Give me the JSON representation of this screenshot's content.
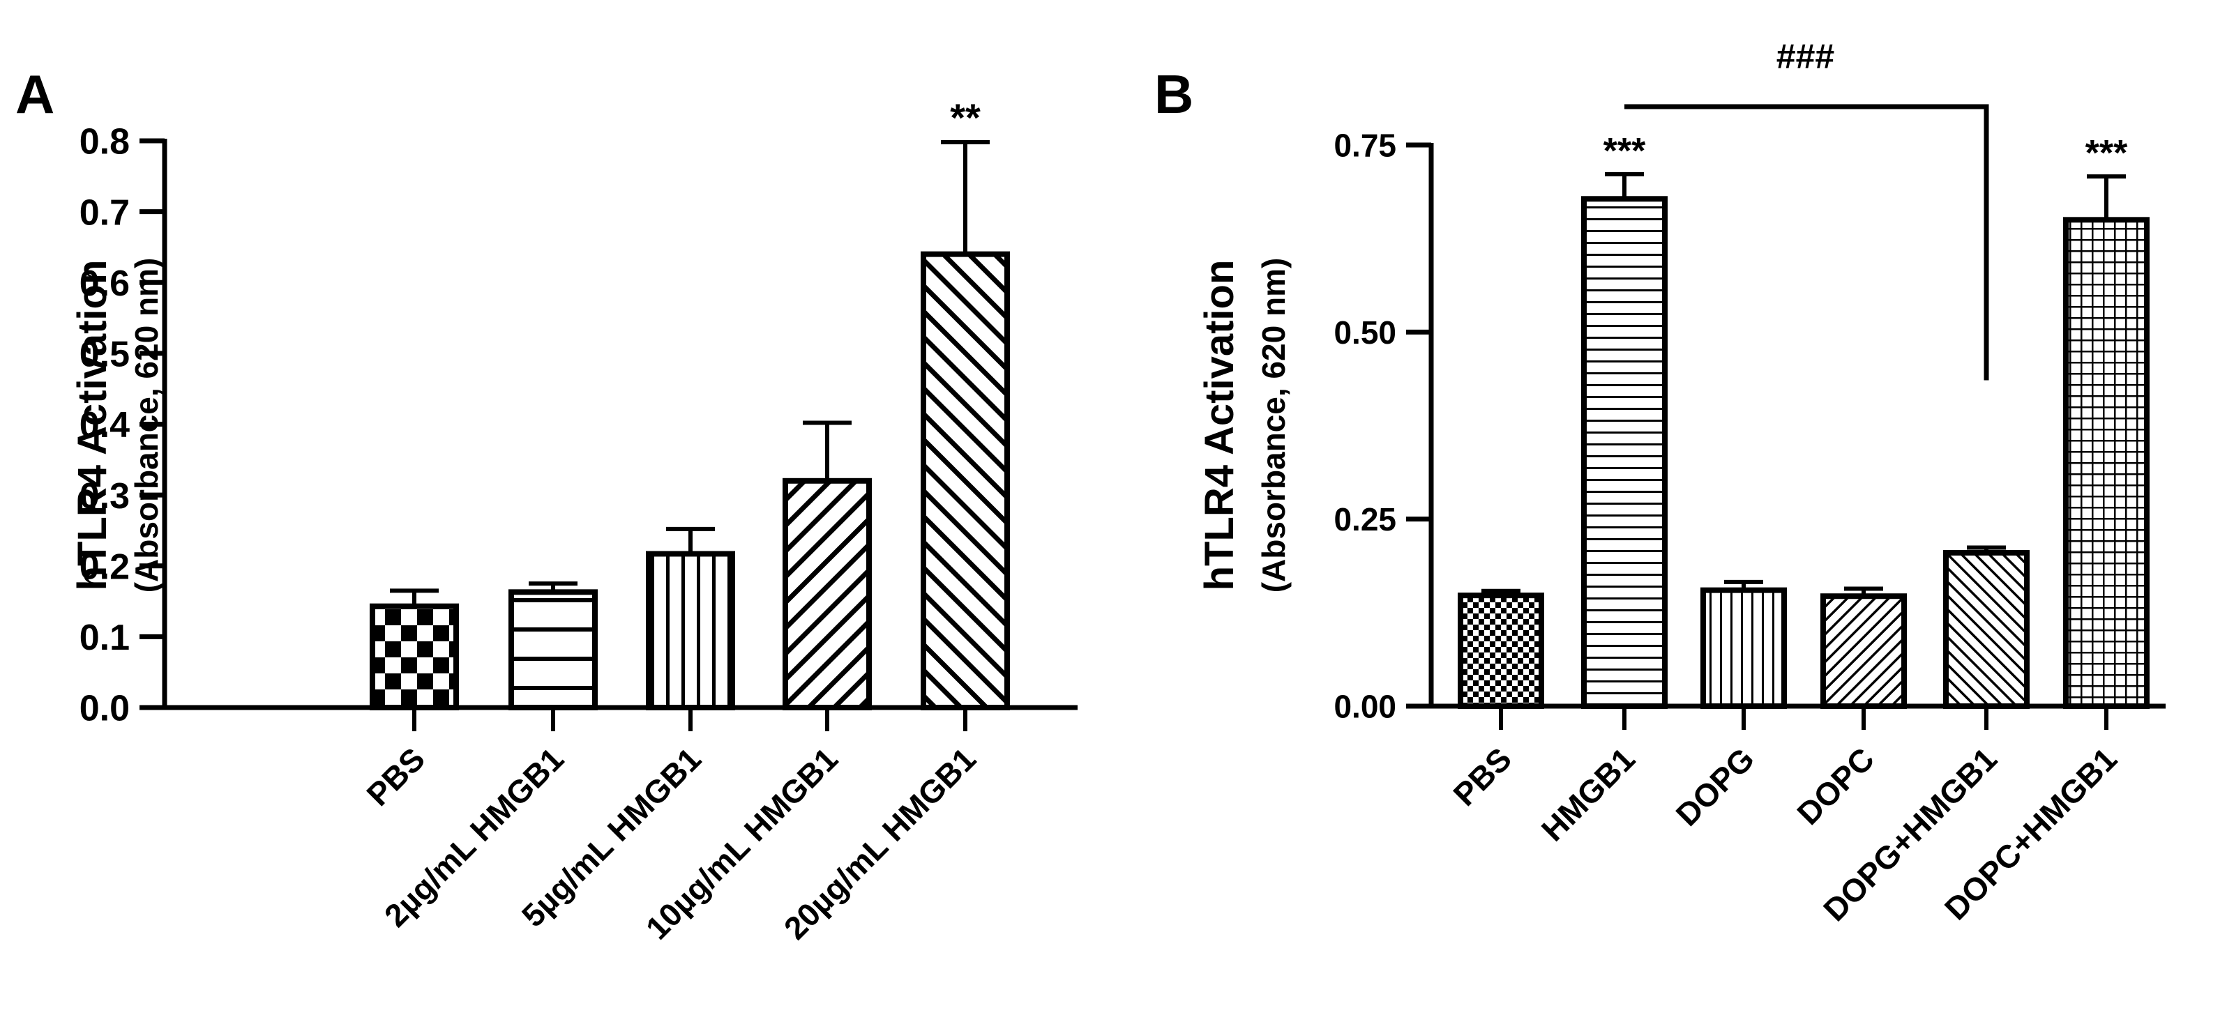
{
  "chart_data": [
    {
      "panel_label": "A",
      "type": "bar",
      "ylabel": "hTLR4 Activation",
      "ylabel_sub": "(Absorbance, 620 nm)",
      "ylim": [
        0,
        0.8
      ],
      "yticks": [
        {
          "value": 0.0,
          "label": "0.0"
        },
        {
          "value": 0.1,
          "label": "0.1"
        },
        {
          "value": 0.2,
          "label": "0.2"
        },
        {
          "value": 0.3,
          "label": "0.3"
        },
        {
          "value": 0.4,
          "label": "0.4"
        },
        {
          "value": 0.5,
          "label": "0.5"
        },
        {
          "value": 0.6,
          "label": "0.6"
        },
        {
          "value": 0.7,
          "label": "0.7"
        },
        {
          "value": 0.8,
          "label": "0.8"
        }
      ],
      "categories": [
        "PBS",
        "2µg/mL HMGB1",
        "5µg/mL HMGB1",
        "10µg/mL HMGB1",
        "20µg/mL HMGB1"
      ],
      "values": [
        0.143,
        0.163,
        0.217,
        0.32,
        0.64
      ],
      "errors": [
        0.022,
        0.012,
        0.035,
        0.082,
        0.158
      ],
      "patterns": [
        "checker",
        "hlines",
        "vlines",
        "diag-up",
        "diag-down"
      ],
      "annotations": [
        "",
        "",
        "",
        "",
        "**"
      ]
    },
    {
      "panel_label": "B",
      "type": "bar",
      "ylabel": "hTLR4 Activation",
      "ylabel_sub": "(Absorbance, 620 nm)",
      "ylim": [
        0,
        0.75
      ],
      "yticks": [
        {
          "value": 0.0,
          "label": "0.00"
        },
        {
          "value": 0.25,
          "label": "0.25"
        },
        {
          "value": 0.5,
          "label": "0.50"
        },
        {
          "value": 0.75,
          "label": "0.75"
        }
      ],
      "categories": [
        "PBS",
        "HMGB1",
        "DOPG",
        "DOPC",
        "DOPG+HMGB1",
        "DOPC+HMGB1"
      ],
      "values": [
        0.148,
        0.678,
        0.155,
        0.147,
        0.205,
        0.65
      ],
      "errors": [
        0.006,
        0.033,
        0.011,
        0.01,
        0.007,
        0.058
      ],
      "patterns": [
        "checker-small",
        "hlines",
        "vlines",
        "diag-up",
        "diag-down",
        "grid"
      ],
      "annotations": [
        "",
        "***",
        "",
        "",
        "",
        "***"
      ],
      "bracket": {
        "from": "HMGB1",
        "to": "DOPG+HMGB1",
        "label": "###"
      }
    }
  ]
}
